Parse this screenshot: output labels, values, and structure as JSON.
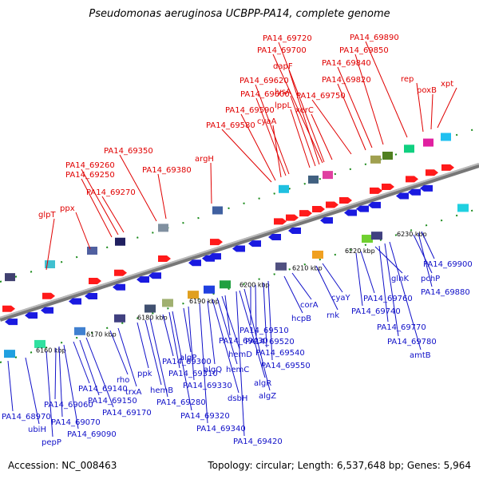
{
  "title": "Pseudomonas aeruginosa UCBPP-PA14, complete genome",
  "accession": "Accession: NC_008463",
  "topology": "Topology: circular; Length: 6,537,648 bp; Genes: 5,964",
  "ticks": [
    "6160 kbp",
    "6170 kbp",
    "6180 kbp",
    "6190 kbp",
    "6200 kbp",
    "6210 kbp",
    "6220 kbp",
    "6230 kbp"
  ],
  "forward_genes": [
    "glpT",
    "ppx",
    "PA14_69270",
    "PA14_69250",
    "PA14_69260",
    "PA14_69350",
    "PA14_69380",
    "argH",
    "PA14_69580",
    "PA14_69590",
    "cyaA",
    "PA14_69600",
    "PA14_69620",
    "lppL",
    "lysA",
    "dapF",
    "PA14_69700",
    "PA14_69720",
    "xerC",
    "PA14_69750",
    "PA14_69820",
    "PA14_69840",
    "PA14_69850",
    "PA14_69890",
    "rep",
    "poxB",
    "xpt"
  ],
  "reverse_genes": [
    "PA14_68970",
    "ubiH",
    "pepP",
    "PA14_69060",
    "PA14_69070",
    "PA14_69090",
    "PA14_69140",
    "PA14_69150",
    "rho",
    "trxA",
    "PA14_69170",
    "ppk",
    "hemB",
    "PA14_69280",
    "PA14_69300",
    "PA14_69310",
    "algP",
    "PA14_69330",
    "PA14_69320",
    "PA14_69340",
    "algQ",
    "dsbH",
    "hemC",
    "hemD",
    "PA14_69430",
    "PA14_69420",
    "algR",
    "algZ",
    "PA14_69510",
    "PA14_69520",
    "PA14_69540",
    "PA14_69550",
    "hcpB",
    "corA",
    "rnk",
    "cyaY",
    "PA14_69740",
    "PA14_69760",
    "glnK",
    "PA14_69770",
    "PA14_69780",
    "amtB",
    "pchP",
    "PA14_69880",
    "PA14_69900"
  ]
}
